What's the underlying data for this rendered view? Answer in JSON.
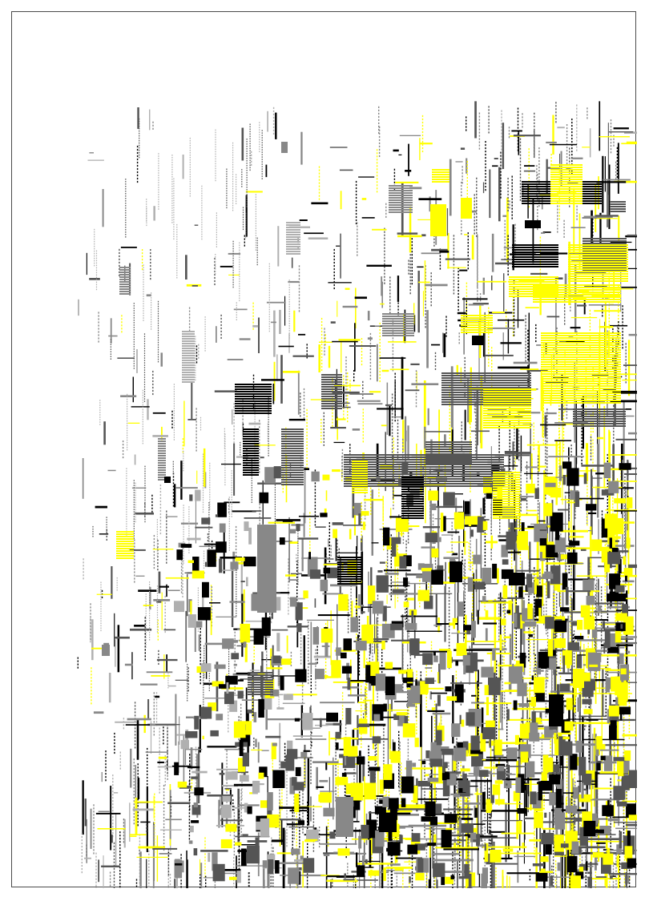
{
  "artwork": {
    "description_visible_text": "",
    "palette": {
      "background": "#ffffff",
      "frame": "#4a4a4a",
      "yellow": "#ffff00",
      "black": "#000000",
      "dark_grey": "#555555",
      "grey": "#888888",
      "light_grey": "#b0b0b0"
    }
  }
}
